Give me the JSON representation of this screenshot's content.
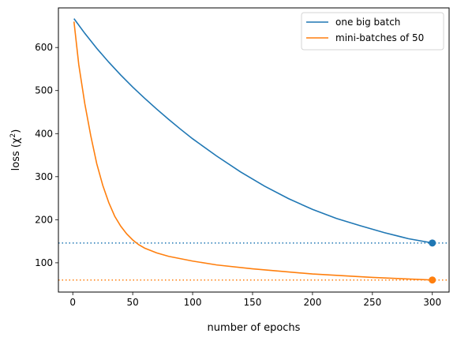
{
  "chart_data": {
    "type": "line",
    "xlabel": "number of epochs",
    "ylabel_main": "loss (χ",
    "ylabel_sup": "2",
    "ylabel_tail": ")",
    "xlim": [
      -12,
      314
    ],
    "ylim": [
      32,
      692
    ],
    "xticks": [
      0,
      50,
      100,
      150,
      200,
      250,
      300
    ],
    "yticks": [
      100,
      200,
      300,
      400,
      500,
      600
    ],
    "grid": false,
    "legend_position": "top-right",
    "series": [
      {
        "name": "one big batch",
        "color": "#1f77b4",
        "x": [
          1,
          10,
          20,
          30,
          40,
          50,
          60,
          70,
          80,
          90,
          100,
          120,
          140,
          160,
          180,
          200,
          220,
          240,
          260,
          280,
          300
        ],
        "y": [
          667,
          633,
          598,
          566,
          536,
          508,
          482,
          457,
          433,
          410,
          388,
          348,
          311,
          278,
          249,
          224,
          203,
          186,
          170,
          156,
          146
        ],
        "final_value": 146
      },
      {
        "name": "mini-batches of 50",
        "color": "#ff7f0e",
        "x": [
          1,
          5,
          10,
          15,
          20,
          25,
          30,
          35,
          40,
          45,
          50,
          55,
          60,
          70,
          80,
          100,
          120,
          150,
          200,
          250,
          300
        ],
        "y": [
          660,
          560,
          470,
          395,
          330,
          280,
          240,
          208,
          185,
          167,
          153,
          142,
          134,
          123,
          115,
          104,
          95,
          86,
          74,
          66,
          60
        ],
        "final_value": 60
      }
    ]
  }
}
